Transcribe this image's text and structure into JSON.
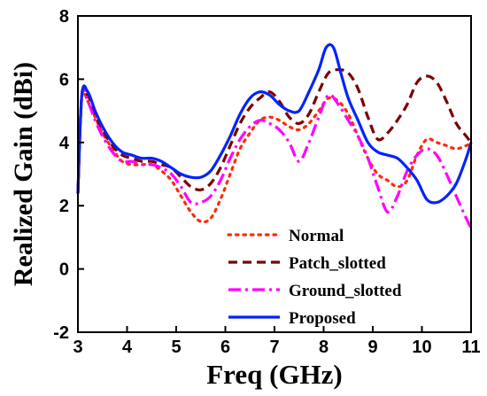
{
  "chart_data": {
    "type": "line",
    "xlabel": "Freq (GHz)",
    "ylabel": "Realized Gain (dBi)",
    "xlim": [
      3,
      11
    ],
    "ylim": [
      -2,
      8
    ],
    "x_ticks": [
      3,
      4,
      5,
      6,
      7,
      8,
      9,
      10,
      11
    ],
    "y_ticks": [
      -2,
      0,
      2,
      4,
      6,
      8
    ],
    "grid": false,
    "legend_position": "bottom-center",
    "series": [
      {
        "name": "Normal",
        "color": "#ff2a00",
        "dash": "dotted",
        "x": [
          3.0,
          3.08,
          3.2,
          3.35,
          3.5,
          3.7,
          3.9,
          4.1,
          4.3,
          4.5,
          4.7,
          4.9,
          5.1,
          5.3,
          5.5,
          5.7,
          5.9,
          6.1,
          6.3,
          6.5,
          6.7,
          6.9,
          7.1,
          7.3,
          7.5,
          7.7,
          7.9,
          8.1,
          8.3,
          8.5,
          8.7,
          8.9,
          9.1,
          9.3,
          9.5,
          9.7,
          9.9,
          10.1,
          10.3,
          10.5,
          10.7,
          10.9,
          11.0
        ],
        "y": [
          2.4,
          5.4,
          5.3,
          4.8,
          4.3,
          3.8,
          3.4,
          3.3,
          3.3,
          3.3,
          3.1,
          2.8,
          2.3,
          1.8,
          1.5,
          1.6,
          2.2,
          3.0,
          3.8,
          4.3,
          4.7,
          4.8,
          4.7,
          4.5,
          4.4,
          4.6,
          5.0,
          5.4,
          5.3,
          4.9,
          4.2,
          3.5,
          3.0,
          2.8,
          2.6,
          2.8,
          3.6,
          4.1,
          4.0,
          3.9,
          3.8,
          3.9,
          4.0
        ]
      },
      {
        "name": "Patch_slotted",
        "color": "#7a0000",
        "dash": "dashed",
        "x": [
          3.0,
          3.08,
          3.2,
          3.35,
          3.5,
          3.7,
          3.9,
          4.1,
          4.3,
          4.5,
          4.7,
          4.9,
          5.1,
          5.3,
          5.5,
          5.7,
          5.9,
          6.1,
          6.3,
          6.5,
          6.7,
          6.9,
          7.1,
          7.3,
          7.5,
          7.7,
          7.9,
          8.1,
          8.3,
          8.5,
          8.7,
          8.9,
          9.1,
          9.3,
          9.5,
          9.7,
          9.9,
          10.1,
          10.3,
          10.5,
          10.7,
          10.9,
          11.0
        ],
        "y": [
          2.4,
          5.5,
          5.5,
          4.9,
          4.4,
          3.9,
          3.6,
          3.5,
          3.4,
          3.4,
          3.3,
          3.2,
          2.9,
          2.6,
          2.5,
          2.7,
          3.2,
          3.9,
          4.6,
          5.1,
          5.4,
          5.6,
          5.3,
          4.8,
          4.6,
          4.9,
          5.6,
          6.2,
          6.3,
          6.2,
          5.7,
          4.8,
          4.1,
          4.3,
          4.7,
          5.2,
          5.9,
          6.1,
          5.9,
          5.3,
          4.6,
          4.2,
          4.0
        ]
      },
      {
        "name": "Ground_slotted",
        "color": "#ff00ff",
        "dash": "dashdot",
        "x": [
          3.0,
          3.08,
          3.2,
          3.35,
          3.5,
          3.7,
          3.9,
          4.1,
          4.3,
          4.5,
          4.7,
          4.9,
          5.1,
          5.3,
          5.5,
          5.7,
          5.9,
          6.1,
          6.3,
          6.5,
          6.7,
          6.9,
          7.1,
          7.3,
          7.5,
          7.7,
          7.9,
          8.1,
          8.3,
          8.5,
          8.7,
          8.9,
          9.1,
          9.3,
          9.5,
          9.7,
          9.9,
          10.1,
          10.3,
          10.5,
          10.7,
          10.9,
          11.0
        ],
        "y": [
          2.4,
          5.5,
          5.3,
          4.7,
          4.2,
          3.7,
          3.4,
          3.4,
          3.3,
          3.3,
          3.2,
          3.0,
          2.6,
          2.1,
          2.1,
          2.3,
          2.8,
          3.5,
          4.1,
          4.5,
          4.7,
          4.6,
          4.4,
          4.0,
          3.4,
          4.0,
          4.8,
          5.5,
          5.2,
          4.7,
          4.2,
          3.5,
          2.6,
          1.8,
          2.3,
          3.1,
          3.6,
          3.8,
          3.6,
          3.0,
          2.3,
          1.6,
          1.3
        ]
      },
      {
        "name": "Proposed",
        "color": "#0022ff",
        "dash": "solid",
        "x": [
          3.0,
          3.08,
          3.2,
          3.35,
          3.5,
          3.7,
          3.9,
          4.1,
          4.3,
          4.5,
          4.7,
          4.9,
          5.1,
          5.3,
          5.5,
          5.7,
          5.9,
          6.1,
          6.3,
          6.5,
          6.7,
          6.9,
          7.1,
          7.3,
          7.5,
          7.7,
          7.9,
          8.05,
          8.2,
          8.35,
          8.5,
          8.7,
          8.9,
          9.1,
          9.3,
          9.5,
          9.7,
          9.9,
          10.1,
          10.3,
          10.5,
          10.7,
          10.9,
          11.0
        ],
        "y": [
          2.4,
          5.5,
          5.6,
          5.0,
          4.5,
          4.0,
          3.7,
          3.6,
          3.5,
          3.5,
          3.4,
          3.2,
          3.0,
          2.9,
          2.9,
          3.1,
          3.6,
          4.2,
          4.9,
          5.4,
          5.6,
          5.5,
          5.2,
          5.0,
          5.0,
          5.6,
          6.3,
          7.0,
          7.0,
          6.2,
          5.4,
          4.7,
          4.0,
          3.7,
          3.6,
          3.5,
          3.2,
          2.8,
          2.2,
          2.1,
          2.3,
          2.7,
          3.5,
          4.0
        ]
      }
    ]
  }
}
